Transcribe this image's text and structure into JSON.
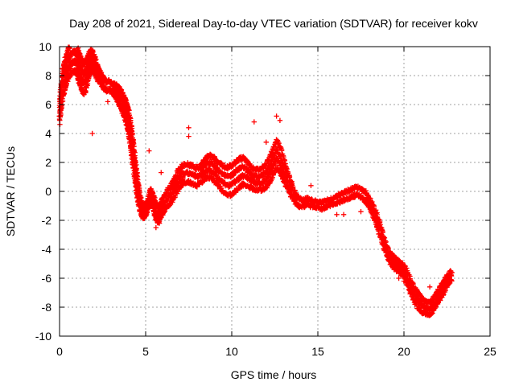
{
  "chart_data": {
    "type": "scatter",
    "title": "Day 208 of 2021, Sidereal Day-to-day VTEC variation (SDTVAR) for receiver kokv",
    "xlabel": "GPS time / hours",
    "ylabel": "SDTVAR / TECUs",
    "xlim": [
      0,
      25
    ],
    "ylim": [
      -10,
      10
    ],
    "x_ticks": [
      0,
      5,
      10,
      15,
      20,
      25
    ],
    "y_ticks": [
      -10,
      -8,
      -6,
      -4,
      -2,
      0,
      2,
      4,
      6,
      8,
      10
    ],
    "x_tick_labels": [
      "0",
      "5",
      "10",
      "15",
      "20",
      "25"
    ],
    "y_tick_labels": [
      "-10",
      "-8",
      "-6",
      "-4",
      "-2",
      "0",
      "2",
      "4",
      "6",
      "8",
      "10"
    ],
    "grid": true,
    "marker": "+",
    "color": "#ff0000",
    "series": [
      {
        "name": "SDTVAR",
        "x": [
          0.0,
          0.1,
          0.2,
          0.3,
          0.4,
          0.5,
          0.6,
          0.7,
          0.8,
          0.9,
          1.0,
          1.1,
          1.2,
          1.3,
          1.4,
          1.5,
          1.6,
          1.7,
          1.8,
          1.9,
          2.0,
          2.1,
          2.2,
          2.3,
          2.4,
          2.5,
          2.6,
          2.7,
          2.8,
          2.9,
          3.0,
          3.1,
          3.2,
          3.3,
          3.4,
          3.5,
          3.6,
          3.7,
          3.8,
          3.9,
          4.0,
          4.1,
          4.2,
          4.3,
          4.4,
          4.5,
          4.6,
          4.7,
          4.8,
          4.9,
          5.0,
          5.1,
          5.2,
          5.3,
          5.4,
          5.5,
          5.6,
          5.7,
          5.8,
          5.9,
          6.0,
          6.2,
          6.4,
          6.6,
          6.8,
          7.0,
          7.2,
          7.4,
          7.6,
          7.8,
          8.0,
          8.2,
          8.4,
          8.6,
          8.8,
          9.0,
          9.2,
          9.4,
          9.6,
          9.8,
          10.0,
          10.2,
          10.4,
          10.6,
          10.8,
          11.0,
          11.2,
          11.4,
          11.6,
          11.8,
          12.0,
          12.2,
          12.4,
          12.6,
          12.8,
          13.0,
          13.2,
          13.4,
          13.6,
          13.8,
          14.0,
          14.2,
          14.4,
          14.6,
          14.8,
          15.0,
          15.2,
          15.4,
          15.6,
          15.8,
          16.0,
          16.2,
          16.4,
          16.6,
          16.8,
          17.0,
          17.2,
          17.4,
          17.6,
          17.8,
          18.0,
          18.2,
          18.4,
          18.6,
          18.8,
          19.0,
          19.2,
          19.4,
          19.6,
          19.8,
          20.0,
          20.2,
          20.4,
          20.6,
          20.8,
          21.0,
          21.2,
          21.4,
          21.6,
          21.8,
          22.0,
          22.2,
          22.4,
          22.6,
          22.8
        ],
        "y": [
          5.5,
          6.5,
          7.5,
          8.0,
          8.4,
          8.8,
          9.0,
          9.2,
          9.3,
          9.3,
          9.1,
          8.7,
          8.3,
          8.0,
          7.8,
          7.9,
          8.3,
          8.7,
          9.0,
          9.0,
          8.8,
          8.5,
          8.2,
          8.0,
          7.8,
          7.6,
          7.4,
          7.3,
          7.3,
          7.3,
          7.2,
          7.1,
          7.0,
          6.9,
          6.7,
          6.5,
          6.3,
          6.0,
          5.7,
          5.3,
          4.9,
          4.2,
          3.3,
          2.4,
          1.4,
          0.5,
          -0.3,
          -0.9,
          -1.3,
          -1.4,
          -1.3,
          -1.0,
          -0.6,
          -0.3,
          -0.6,
          -1.0,
          -1.4,
          -1.6,
          -1.5,
          -1.2,
          -1.0,
          -0.6,
          -0.3,
          0.1,
          0.6,
          1.0,
          1.2,
          1.3,
          1.2,
          1.1,
          1.0,
          1.2,
          1.5,
          1.7,
          1.7,
          1.5,
          1.2,
          1.0,
          0.8,
          0.7,
          0.8,
          1.0,
          1.2,
          1.4,
          1.3,
          1.1,
          0.9,
          0.8,
          0.8,
          0.9,
          1.1,
          1.5,
          2.0,
          2.6,
          2.2,
          1.6,
          0.9,
          0.3,
          -0.2,
          -0.6,
          -0.8,
          -0.8,
          -0.7,
          -0.8,
          -0.9,
          -0.9,
          -1.0,
          -0.9,
          -0.8,
          -0.7,
          -0.6,
          -0.5,
          -0.4,
          -0.3,
          -0.2,
          -0.1,
          0.0,
          0.0,
          -0.2,
          -0.4,
          -0.8,
          -1.3,
          -1.9,
          -2.6,
          -3.4,
          -4.1,
          -4.6,
          -4.9,
          -5.1,
          -5.3,
          -5.5,
          -6.0,
          -6.6,
          -7.1,
          -7.5,
          -7.8,
          -8.0,
          -8.1,
          -8.0,
          -7.6,
          -7.2,
          -6.8,
          -6.4,
          -6.0,
          -5.8
        ],
        "spread": [
          1.5,
          1.8,
          2.0,
          2.0,
          2.0,
          2.0,
          2.0,
          2.0,
          2.0,
          2.0,
          2.0,
          2.0,
          2.0,
          2.0,
          2.0,
          2.0,
          1.8,
          1.6,
          1.4,
          1.3,
          1.2,
          1.0,
          0.9,
          0.8,
          0.7,
          0.6,
          0.6,
          0.6,
          0.6,
          0.6,
          0.6,
          0.6,
          0.7,
          0.9,
          1.0,
          1.1,
          1.2,
          1.3,
          1.4,
          1.5,
          1.6,
          1.8,
          1.8,
          1.8,
          1.6,
          1.4,
          1.2,
          1.0,
          0.9,
          0.8,
          0.7,
          0.7,
          0.7,
          0.8,
          0.9,
          1.0,
          1.0,
          1.0,
          1.0,
          1.0,
          1.0,
          1.1,
          1.2,
          1.3,
          1.3,
          1.3,
          1.2,
          1.2,
          1.2,
          1.2,
          1.2,
          1.2,
          1.3,
          1.4,
          1.5,
          1.6,
          1.6,
          1.7,
          1.8,
          1.9,
          2.0,
          2.0,
          2.0,
          1.9,
          1.7,
          1.5,
          1.4,
          1.4,
          1.4,
          1.5,
          1.6,
          1.7,
          1.8,
          1.9,
          1.8,
          1.6,
          1.3,
          1.0,
          0.8,
          0.6,
          0.5,
          0.4,
          0.4,
          0.4,
          0.4,
          0.4,
          0.4,
          0.4,
          0.4,
          0.4,
          0.4,
          0.5,
          0.5,
          0.5,
          0.5,
          0.5,
          0.5,
          0.5,
          0.6,
          0.6,
          0.7,
          0.8,
          0.8,
          0.8,
          0.8,
          0.7,
          0.7,
          0.7,
          0.7,
          0.7,
          0.8,
          0.9,
          0.9,
          1.0,
          1.0,
          0.9,
          0.9,
          0.8,
          0.8,
          0.8,
          0.8,
          0.8,
          0.8,
          0.7,
          0.6
        ]
      }
    ],
    "isolated_points": [
      {
        "x": 1.9,
        "y": 4.0
      },
      {
        "x": 5.2,
        "y": 2.8
      },
      {
        "x": 5.9,
        "y": 1.3
      },
      {
        "x": 5.6,
        "y": -2.5
      },
      {
        "x": 5.8,
        "y": -2.2
      },
      {
        "x": 7.5,
        "y": 4.4
      },
      {
        "x": 7.5,
        "y": 3.8
      },
      {
        "x": 9.0,
        "y": 2.4
      },
      {
        "x": 11.3,
        "y": 4.8
      },
      {
        "x": 12.6,
        "y": 5.2
      },
      {
        "x": 12.8,
        "y": 4.9
      },
      {
        "x": 12.0,
        "y": 3.4
      },
      {
        "x": 14.6,
        "y": 0.4
      },
      {
        "x": 16.1,
        "y": -1.6
      },
      {
        "x": 16.5,
        "y": -1.6
      },
      {
        "x": 17.5,
        "y": -1.4
      },
      {
        "x": 19.7,
        "y": -6.0
      },
      {
        "x": 19.0,
        "y": -4.4
      },
      {
        "x": 20.0,
        "y": -6.2
      },
      {
        "x": 21.0,
        "y": -7.6
      },
      {
        "x": 21.5,
        "y": -6.6
      },
      {
        "x": 22.6,
        "y": -6.3
      },
      {
        "x": 4.0,
        "y": 5.0
      },
      {
        "x": 2.8,
        "y": 6.2
      }
    ]
  }
}
